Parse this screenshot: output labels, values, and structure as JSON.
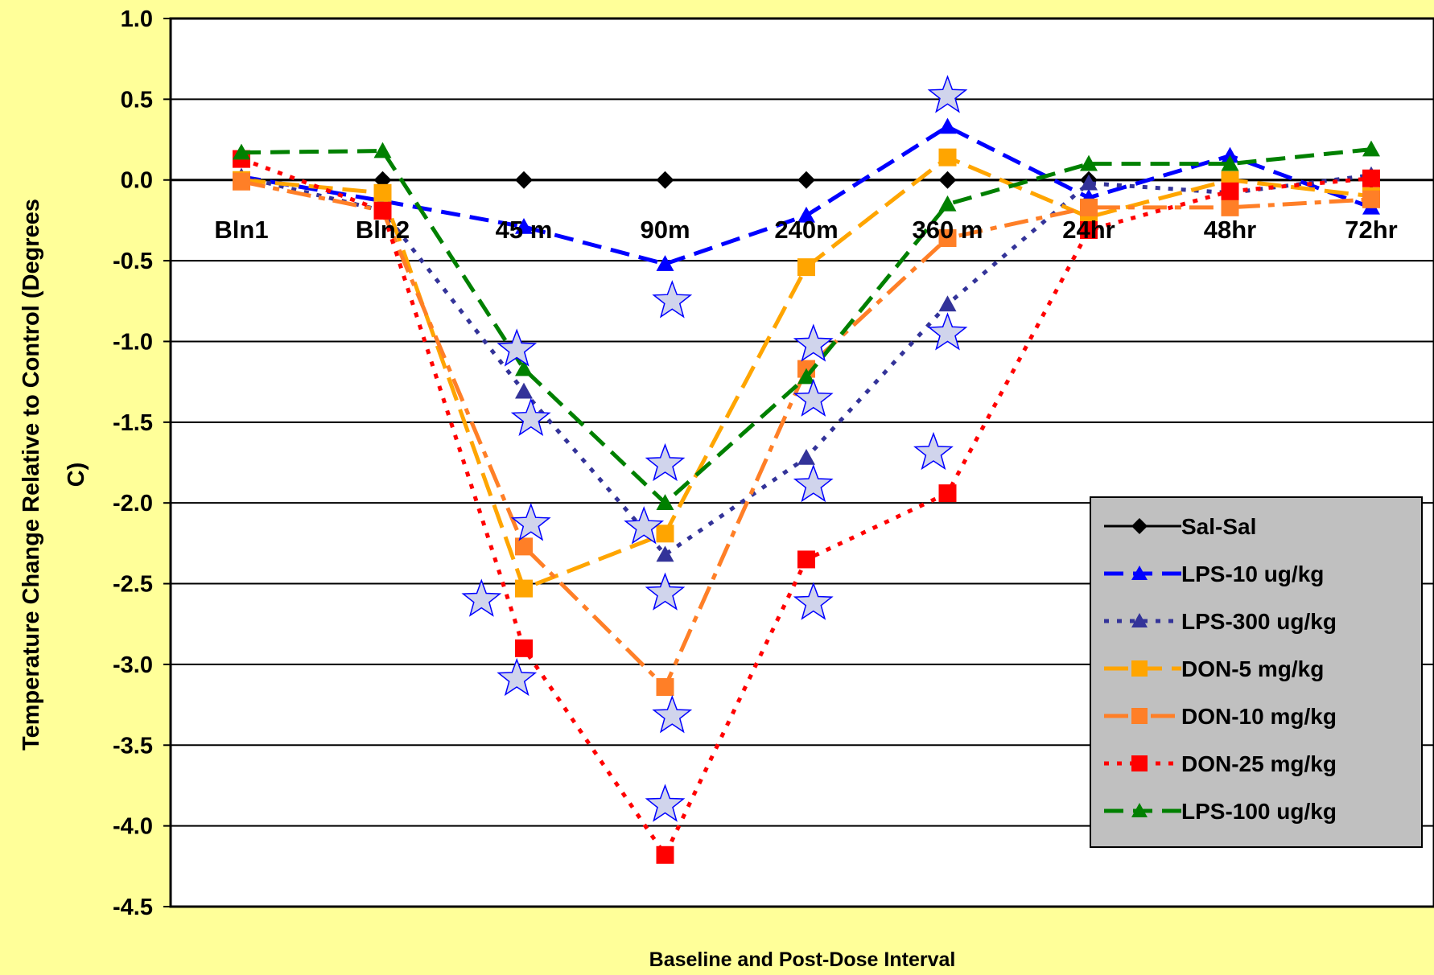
{
  "chart_data": {
    "type": "line",
    "title": "",
    "xlabel": "Baseline and Post-Dose Interval",
    "ylabel": "Temperature Change Relative to Control (Degrees C)",
    "ylabel_lines": [
      "Temperature Change Relative to Control (Degrees",
      "C)"
    ],
    "ylim": [
      -4.5,
      1.0
    ],
    "yticks": [
      "1.0",
      "0.5",
      "0.0",
      "-0.5",
      "-1.0",
      "-1.5",
      "-2.0",
      "-2.5",
      "-3.0",
      "-3.5",
      "-4.0",
      "-4.5"
    ],
    "ytick_values": [
      1.0,
      0.5,
      0.0,
      -0.5,
      -1.0,
      -1.5,
      -2.0,
      -2.5,
      -3.0,
      -3.5,
      -4.0,
      -4.5
    ],
    "categories": [
      "Bln1",
      "Bln2",
      "45 m",
      "90m",
      "240m",
      "360 m",
      "24hr",
      "48hr",
      "72hr"
    ],
    "grid": true,
    "legend_position": "right",
    "background_color": "#FFFF99",
    "series": [
      {
        "name": "Sal-Sal",
        "color": "#000000",
        "marker": "diamond",
        "dash": "solid",
        "values": [
          0,
          0,
          0,
          0,
          0,
          0,
          0,
          0,
          0
        ]
      },
      {
        "name": "LPS-10 ug/kg",
        "color": "#0000FF",
        "marker": "triangle",
        "dash": "dash",
        "values": [
          0.02,
          -0.13,
          -0.29,
          -0.52,
          -0.22,
          0.33,
          -0.11,
          0.15,
          -0.17
        ]
      },
      {
        "name": "LPS-300 ug/kg",
        "color": "#333399",
        "marker": "triangle",
        "dash": "dot",
        "values": [
          0.02,
          -0.19,
          -1.31,
          -2.32,
          -1.72,
          -0.77,
          -0.02,
          -0.08,
          0.03
        ]
      },
      {
        "name": "DON-5 mg/kg",
        "color": "#FFA500",
        "marker": "square",
        "dash": "longdash",
        "values": [
          0.0,
          -0.08,
          -2.53,
          -2.19,
          -0.54,
          0.14,
          -0.23,
          0.0,
          -0.1
        ]
      },
      {
        "name": "DON-10 mg/kg",
        "color": "#FF7F27",
        "marker": "square",
        "dash": "dashdot",
        "values": [
          -0.01,
          -0.19,
          -2.27,
          -3.14,
          -1.17,
          -0.36,
          -0.17,
          -0.17,
          -0.12
        ]
      },
      {
        "name": "DON-25 mg/kg",
        "color": "#FF0000",
        "marker": "square",
        "dash": "dot",
        "values": [
          0.13,
          -0.19,
          -2.9,
          -4.18,
          -2.35,
          -1.94,
          -0.31,
          -0.07,
          0.01
        ]
      },
      {
        "name": "LPS-100 ug/kg",
        "color": "#008000",
        "marker": "triangle",
        "dash": "dash",
        "values": [
          0.17,
          0.18,
          -1.17,
          -2.0,
          -1.22,
          -0.15,
          0.1,
          0.1,
          0.19
        ]
      }
    ],
    "significance_stars": [
      {
        "x": "45 m",
        "offset": -0.3,
        "y": -2.6
      },
      {
        "x": "45 m",
        "offset": -0.05,
        "y": -3.09
      },
      {
        "x": "45 m",
        "offset": -0.05,
        "y": -1.05
      },
      {
        "x": "45 m",
        "offset": 0.05,
        "y": -1.48
      },
      {
        "x": "45 m",
        "offset": 0.05,
        "y": -2.13
      },
      {
        "x": "90m",
        "offset": 0.05,
        "y": -0.75
      },
      {
        "x": "90m",
        "offset": 0.0,
        "y": -1.76
      },
      {
        "x": "90m",
        "offset": -0.15,
        "y": -2.15
      },
      {
        "x": "90m",
        "offset": 0.0,
        "y": -2.56
      },
      {
        "x": "90m",
        "offset": 0.05,
        "y": -3.32
      },
      {
        "x": "90m",
        "offset": 0.0,
        "y": -3.87
      },
      {
        "x": "240m",
        "offset": 0.05,
        "y": -1.02
      },
      {
        "x": "240m",
        "offset": 0.05,
        "y": -1.36
      },
      {
        "x": "240m",
        "offset": 0.05,
        "y": -1.89
      },
      {
        "x": "240m",
        "offset": 0.05,
        "y": -2.62
      },
      {
        "x": "360 m",
        "offset": 0.0,
        "y": 0.52
      },
      {
        "x": "360 m",
        "offset": 0.0,
        "y": -0.95
      },
      {
        "x": "360 m",
        "offset": -0.1,
        "y": -1.69
      }
    ]
  }
}
